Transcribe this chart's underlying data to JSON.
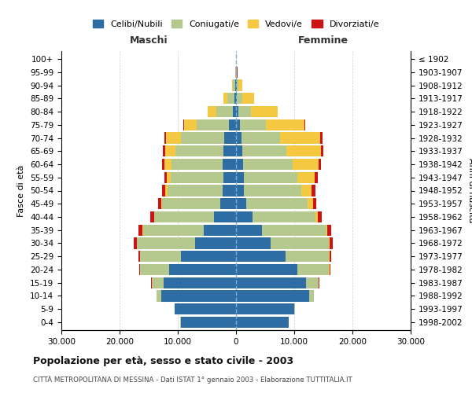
{
  "age_groups": [
    "0-4",
    "5-9",
    "10-14",
    "15-19",
    "20-24",
    "25-29",
    "30-34",
    "35-39",
    "40-44",
    "45-49",
    "50-54",
    "55-59",
    "60-64",
    "65-69",
    "70-74",
    "75-79",
    "80-84",
    "85-89",
    "90-94",
    "95-99",
    "100+"
  ],
  "birth_years": [
    "1998-2002",
    "1993-1997",
    "1988-1992",
    "1983-1987",
    "1978-1982",
    "1973-1977",
    "1968-1972",
    "1963-1967",
    "1958-1962",
    "1953-1957",
    "1948-1952",
    "1943-1947",
    "1938-1942",
    "1933-1937",
    "1928-1932",
    "1923-1927",
    "1918-1922",
    "1913-1917",
    "1908-1912",
    "1903-1907",
    "≤ 1902"
  ],
  "maschi": {
    "celibi": [
      9500,
      10500,
      12800,
      12500,
      11500,
      9500,
      7000,
      5500,
      3800,
      2700,
      2300,
      2200,
      2300,
      2200,
      2000,
      1200,
      600,
      300,
      150,
      60,
      20
    ],
    "coniugati": [
      50,
      100,
      800,
      2000,
      5000,
      7000,
      10000,
      10500,
      10200,
      10000,
      9500,
      9000,
      8800,
      8200,
      7500,
      5500,
      2800,
      1200,
      400,
      80,
      10
    ],
    "vedovi": [
      1,
      2,
      3,
      5,
      8,
      15,
      30,
      60,
      100,
      200,
      400,
      700,
      1200,
      1800,
      2500,
      2200,
      1400,
      600,
      150,
      30,
      5
    ],
    "divorziati": [
      2,
      5,
      15,
      50,
      150,
      300,
      600,
      700,
      600,
      500,
      450,
      400,
      400,
      350,
      300,
      200,
      100,
      60,
      20,
      5,
      1
    ]
  },
  "femmine": {
    "nubili": [
      9000,
      10000,
      12500,
      12000,
      10500,
      8500,
      6000,
      4500,
      2800,
      1800,
      1400,
      1300,
      1200,
      1100,
      1000,
      700,
      400,
      200,
      100,
      50,
      20
    ],
    "coniugate": [
      60,
      120,
      900,
      2200,
      5500,
      7500,
      10000,
      11000,
      10800,
      10500,
      9800,
      9200,
      8500,
      7500,
      6500,
      4500,
      2200,
      900,
      350,
      70,
      10
    ],
    "vedove": [
      2,
      3,
      5,
      10,
      20,
      40,
      80,
      180,
      400,
      900,
      1800,
      3000,
      4500,
      6000,
      7000,
      6500,
      4500,
      2000,
      600,
      80,
      10
    ],
    "divorziate": [
      2,
      5,
      15,
      50,
      150,
      300,
      600,
      700,
      700,
      650,
      600,
      500,
      450,
      400,
      350,
      250,
      120,
      60,
      20,
      5,
      1
    ]
  },
  "colors": {
    "celibi": "#2E6DA4",
    "coniugati": "#B5C98E",
    "vedovi": "#F5C842",
    "divorziati": "#CC1414"
  },
  "xlim": 30000,
  "xticks": [
    -30000,
    -20000,
    -10000,
    0,
    10000,
    20000,
    30000
  ],
  "xtick_labels": [
    "30.000",
    "20.000",
    "10.000",
    "0",
    "10.000",
    "20.000",
    "30.000"
  ],
  "title": "Popolazione per età, sesso e stato civile - 2003",
  "subtitle": "CITTÀ METROPOLITANA DI MESSINA - Dati ISTAT 1° gennaio 2003 - Elaborazione TUTTITALIA.IT",
  "ylabel_left": "Fasce di età",
  "ylabel_right": "Anni di nascita",
  "maschi_label": "Maschi",
  "femmine_label": "Femmine"
}
